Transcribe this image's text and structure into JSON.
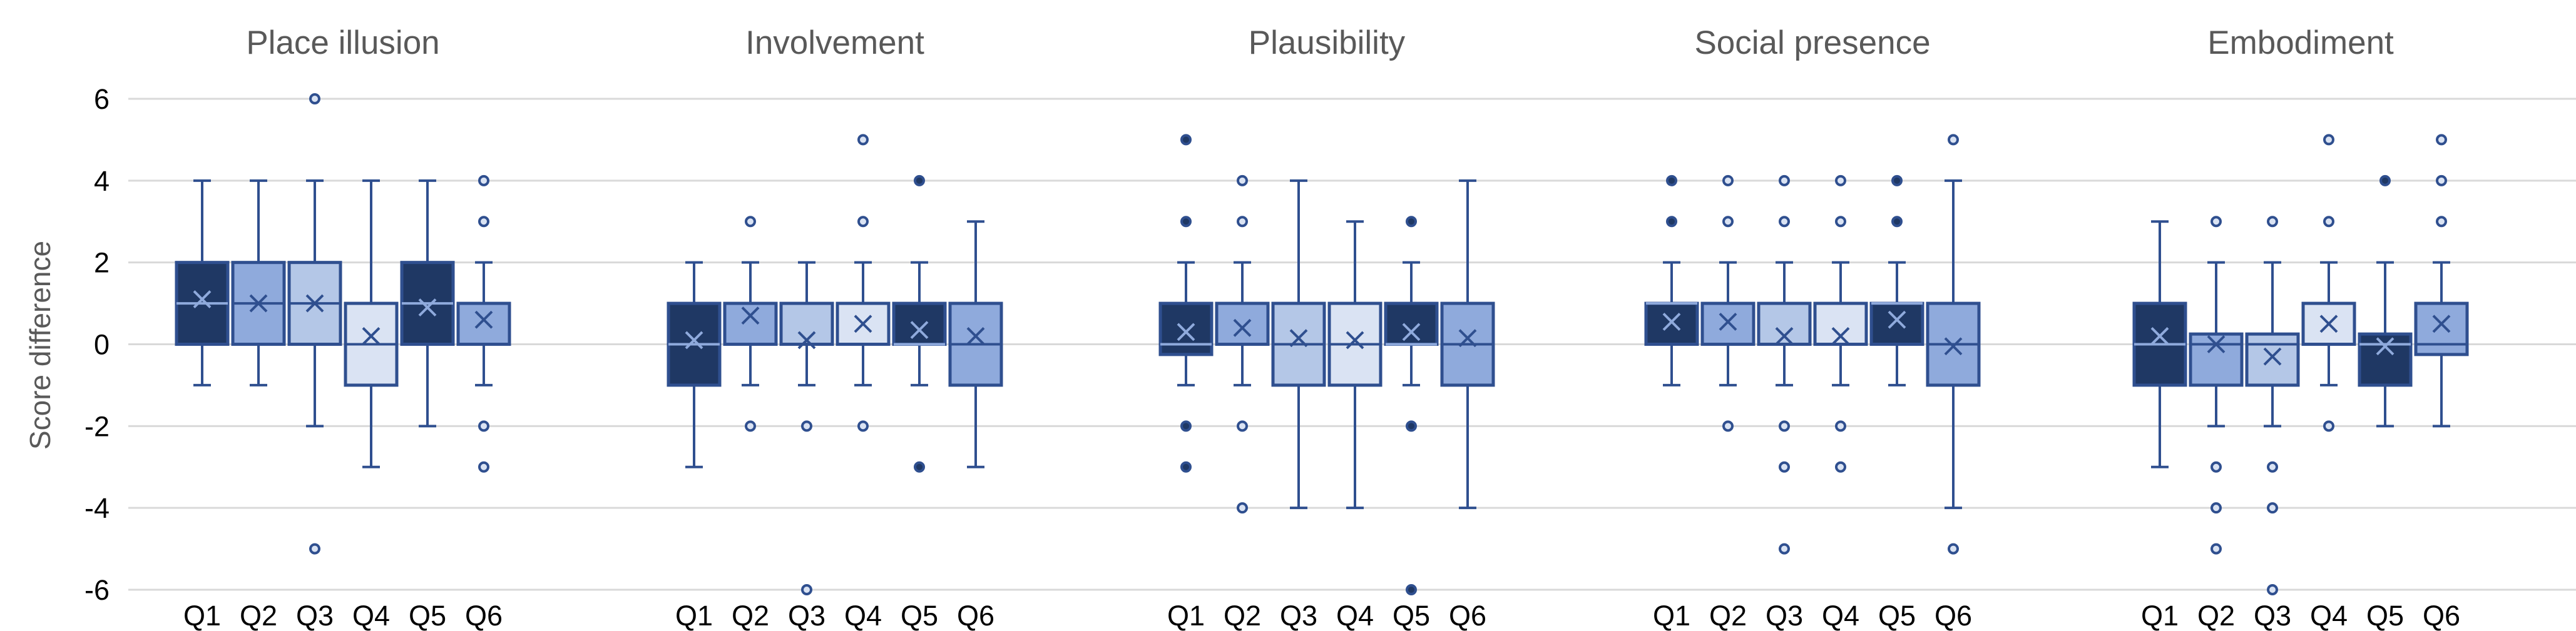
{
  "chart_data": {
    "type": "boxplot",
    "ylabel": "Score difference",
    "ylim": [
      -6,
      6
    ],
    "yticks": [
      6,
      4,
      2,
      0,
      -2,
      -4,
      -6
    ],
    "grid": true,
    "colors": {
      "Q1": "#1f3864",
      "Q2": "#8faadc",
      "Q3": "#b4c7e7",
      "Q4": "#dae3f3",
      "Q5": "#1f3864",
      "Q6": "#8faadc",
      "line": "#2f4f8f",
      "grid": "#d9d9d9"
    },
    "panels": [
      {
        "title": "Place illusion",
        "boxes": [
          {
            "label": "Q1",
            "min": -1,
            "q1": 0,
            "median": 1,
            "q3": 2,
            "max": 4,
            "mean": 1.1,
            "outliers": []
          },
          {
            "label": "Q2",
            "min": -1,
            "q1": 0,
            "median": 1,
            "q3": 2,
            "max": 4,
            "mean": 1.0,
            "outliers": []
          },
          {
            "label": "Q3",
            "min": -2,
            "q1": 0,
            "median": 1,
            "q3": 2,
            "max": 4,
            "mean": 1.0,
            "outliers": [
              6,
              -5
            ]
          },
          {
            "label": "Q4",
            "min": -3,
            "q1": -1,
            "median": 0,
            "q3": 1,
            "max": 4,
            "mean": 0.2,
            "outliers": []
          },
          {
            "label": "Q5",
            "min": -2,
            "q1": 0,
            "median": 1,
            "q3": 2,
            "max": 4,
            "mean": 0.9,
            "outliers": []
          },
          {
            "label": "Q6",
            "min": -1,
            "q1": 0,
            "median": 1,
            "q3": 1,
            "max": 2,
            "mean": 0.6,
            "outliers": [
              4,
              3,
              -2,
              -3
            ]
          }
        ]
      },
      {
        "title": "Involvement",
        "boxes": [
          {
            "label": "Q1",
            "min": -3,
            "q1": -1,
            "median": 0,
            "q3": 1,
            "max": 2,
            "mean": 0.1,
            "outliers": []
          },
          {
            "label": "Q2",
            "min": -1,
            "q1": 0,
            "median": 1,
            "q3": 1,
            "max": 2,
            "mean": 0.7,
            "outliers": [
              3,
              -2
            ]
          },
          {
            "label": "Q3",
            "min": -1,
            "q1": 0,
            "median": 0,
            "q3": 1,
            "max": 2,
            "mean": 0.1,
            "outliers": [
              -2,
              -6
            ]
          },
          {
            "label": "Q4",
            "min": -1,
            "q1": 0,
            "median": 1,
            "q3": 1,
            "max": 2,
            "mean": 0.5,
            "outliers": [
              5,
              3,
              -2
            ]
          },
          {
            "label": "Q5",
            "min": -1,
            "q1": 0,
            "median": 0,
            "q3": 1,
            "max": 2,
            "mean": 0.35,
            "outliers": [
              4,
              -3
            ]
          },
          {
            "label": "Q6",
            "min": -3,
            "q1": -1,
            "median": 0,
            "q3": 1,
            "max": 3,
            "mean": 0.2,
            "outliers": []
          }
        ]
      },
      {
        "title": "Plausibility",
        "boxes": [
          {
            "label": "Q1",
            "min": -1,
            "q1": -0.25,
            "median": 0,
            "q3": 1,
            "max": 2,
            "mean": 0.3,
            "outliers": [
              5,
              3,
              -2,
              -3
            ]
          },
          {
            "label": "Q2",
            "min": -1,
            "q1": 0,
            "median": 1,
            "q3": 1,
            "max": 2,
            "mean": 0.4,
            "outliers": [
              4,
              3,
              -2,
              -4
            ]
          },
          {
            "label": "Q3",
            "min": -4,
            "q1": -1,
            "median": 0,
            "q3": 1,
            "max": 4,
            "mean": 0.15,
            "outliers": []
          },
          {
            "label": "Q4",
            "min": -4,
            "q1": -1,
            "median": 0,
            "q3": 1,
            "max": 3,
            "mean": 0.1,
            "outliers": []
          },
          {
            "label": "Q5",
            "min": -1,
            "q1": 0,
            "median": 0,
            "q3": 1,
            "max": 2,
            "mean": 0.3,
            "outliers": [
              3,
              -2,
              -6
            ]
          },
          {
            "label": "Q6",
            "min": -4,
            "q1": -1,
            "median": 0,
            "q3": 1,
            "max": 4,
            "mean": 0.15,
            "outliers": []
          }
        ]
      },
      {
        "title": "Social presence",
        "boxes": [
          {
            "label": "Q1",
            "min": -1,
            "q1": 0,
            "median": 1,
            "q3": 1,
            "max": 2,
            "mean": 0.55,
            "outliers": [
              4,
              3
            ]
          },
          {
            "label": "Q2",
            "min": -1,
            "q1": 0,
            "median": 1,
            "q3": 1,
            "max": 2,
            "mean": 0.55,
            "outliers": [
              4,
              3,
              -2
            ]
          },
          {
            "label": "Q3",
            "min": -1,
            "q1": 0,
            "median": 0,
            "q3": 1,
            "max": 2,
            "mean": 0.2,
            "outliers": [
              4,
              3,
              -2,
              -3,
              -5
            ]
          },
          {
            "label": "Q4",
            "min": -1,
            "q1": 0,
            "median": 0,
            "q3": 1,
            "max": 2,
            "mean": 0.2,
            "outliers": [
              4,
              3,
              -2,
              -3
            ]
          },
          {
            "label": "Q5",
            "min": -1,
            "q1": 0,
            "median": 1,
            "q3": 1,
            "max": 2,
            "mean": 0.6,
            "outliers": [
              4,
              3
            ]
          },
          {
            "label": "Q6",
            "min": -4,
            "q1": -1,
            "median": 0,
            "q3": 1,
            "max": 4,
            "mean": -0.05,
            "outliers": [
              5,
              -5
            ]
          }
        ]
      },
      {
        "title": "Embodiment",
        "boxes": [
          {
            "label": "Q1",
            "min": -3,
            "q1": -1,
            "median": 0,
            "q3": 1,
            "max": 3,
            "mean": 0.2,
            "outliers": []
          },
          {
            "label": "Q2",
            "min": -2,
            "q1": -1,
            "median": 0,
            "q3": 0.25,
            "max": 2,
            "mean": 0.0,
            "outliers": [
              3,
              -3,
              -4,
              -5
            ]
          },
          {
            "label": "Q3",
            "min": -2,
            "q1": -1,
            "median": 0,
            "q3": 0.25,
            "max": 2,
            "mean": -0.3,
            "outliers": [
              3,
              -3,
              -4,
              -6
            ]
          },
          {
            "label": "Q4",
            "min": -1,
            "q1": 0,
            "median": 1,
            "q3": 1,
            "max": 2,
            "mean": 0.5,
            "outliers": [
              5,
              3,
              -2
            ]
          },
          {
            "label": "Q5",
            "min": -2,
            "q1": -1,
            "median": 0,
            "q3": 0.25,
            "max": 2,
            "mean": -0.05,
            "outliers": [
              4
            ]
          },
          {
            "label": "Q6",
            "min": -2,
            "q1": -0.25,
            "median": 0,
            "q3": 1,
            "max": 2,
            "mean": 0.5,
            "outliers": [
              5,
              4,
              3
            ]
          }
        ]
      }
    ]
  }
}
